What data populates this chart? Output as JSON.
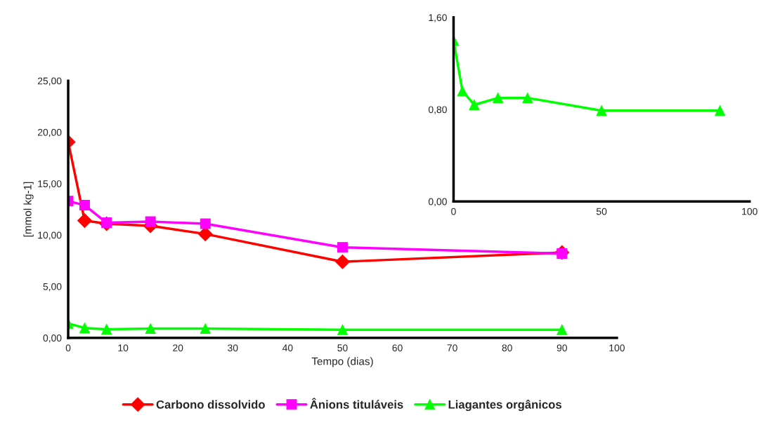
{
  "chart_data": [
    {
      "type": "line",
      "xlabel": "Tempo (dias)",
      "ylabel": "[mmol kg-1]",
      "x": [
        0,
        3,
        7,
        15,
        25,
        50,
        90
      ],
      "series": [
        {
          "name": "Carbono dissolvido",
          "color": "#ff0000",
          "marker": "diamond",
          "values": [
            19.05,
            11.4,
            11.1,
            10.9,
            10.1,
            7.4,
            8.3
          ]
        },
        {
          "name": "Ânions tituláveis",
          "color": "#ff00ff",
          "marker": "square",
          "values": [
            13.3,
            12.9,
            11.2,
            11.3,
            11.1,
            8.8,
            8.2
          ]
        },
        {
          "name": "Liagantes orgânicos",
          "color": "#00ff00",
          "marker": "triangle",
          "values": [
            1.4,
            0.96,
            0.84,
            0.9,
            0.9,
            0.79,
            0.79
          ]
        }
      ],
      "xlim": [
        0,
        100
      ],
      "xticks": [
        0,
        10,
        20,
        30,
        40,
        50,
        60,
        70,
        80,
        90,
        100
      ],
      "ylim": [
        0,
        25
      ],
      "yticks": [
        {
          "value": 0,
          "label": "0,00"
        },
        {
          "value": 5,
          "label": "5,00"
        },
        {
          "value": 10,
          "label": "10,00"
        },
        {
          "value": 15,
          "label": "15,00"
        },
        {
          "value": 20,
          "label": "20,00"
        },
        {
          "value": 25,
          "label": "25,00"
        }
      ],
      "legend": "bottom"
    },
    {
      "type": "line",
      "x": [
        0,
        3,
        7,
        15,
        25,
        50,
        90
      ],
      "series": [
        {
          "color": "#00ff00",
          "marker": "triangle",
          "values": [
            1.4,
            0.96,
            0.84,
            0.9,
            0.9,
            0.79,
            0.79
          ]
        }
      ],
      "xlim": [
        0,
        100
      ],
      "xticks": [
        0,
        50,
        100
      ],
      "ylim": [
        0,
        1.6
      ],
      "yticks": [
        {
          "value": 0,
          "label": "0,00"
        },
        {
          "value": 0.8,
          "label": "0,80"
        },
        {
          "value": 1.6,
          "label": "1,60"
        }
      ]
    }
  ]
}
